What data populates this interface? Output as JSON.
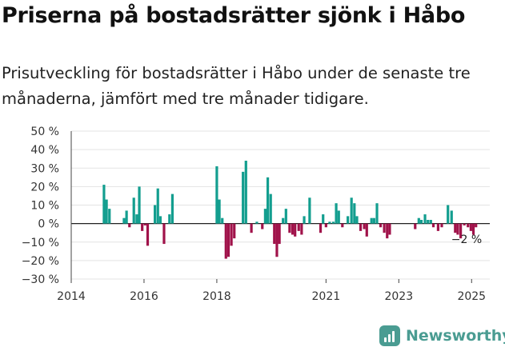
{
  "title": "Priserna på bostadsrätter sjönk i Håbo",
  "subtitle": "Prisutveckling för bostadsrätter i Håbo under de senaste tre månaderna, jämfört med tre månader tidigare.",
  "logo_text": "Newsworthy",
  "colors": {
    "positive": "#139e8f",
    "negative": "#a0124a",
    "logo": "#4a9c92"
  },
  "chart_data": {
    "type": "bar",
    "ylabel_unit": "%",
    "ylim": [
      -30,
      50
    ],
    "yticks": [
      "50 %",
      "40 %",
      "30 %",
      "20 %",
      "10 %",
      "0 %",
      "−10 %",
      "−20 %",
      "−30 %"
    ],
    "xticks": [
      "2014",
      "2016",
      "2018",
      "2021",
      "2023",
      "2025"
    ],
    "xlim": [
      2014,
      2025.5
    ],
    "grid": true,
    "annotation": "−2 %",
    "points": [
      [
        2014.9,
        21
      ],
      [
        2014.97,
        13
      ],
      [
        2015.05,
        8
      ],
      [
        2015.45,
        3
      ],
      [
        2015.52,
        7
      ],
      [
        2015.6,
        -2
      ],
      [
        2015.72,
        14
      ],
      [
        2015.8,
        5
      ],
      [
        2015.87,
        20
      ],
      [
        2015.95,
        -4
      ],
      [
        2016.03,
        -1
      ],
      [
        2016.1,
        -12
      ],
      [
        2016.3,
        10
      ],
      [
        2016.38,
        19
      ],
      [
        2016.45,
        4
      ],
      [
        2016.55,
        -11
      ],
      [
        2016.7,
        5
      ],
      [
        2016.78,
        16
      ],
      [
        2018.0,
        31
      ],
      [
        2018.07,
        13
      ],
      [
        2018.15,
        3
      ],
      [
        2018.25,
        -19
      ],
      [
        2018.32,
        -18
      ],
      [
        2018.4,
        -12
      ],
      [
        2018.48,
        -8
      ],
      [
        2018.72,
        28
      ],
      [
        2018.8,
        34
      ],
      [
        2018.95,
        -5
      ],
      [
        2019.1,
        1
      ],
      [
        2019.25,
        -3
      ],
      [
        2019.33,
        8
      ],
      [
        2019.4,
        25
      ],
      [
        2019.48,
        16
      ],
      [
        2019.58,
        -11
      ],
      [
        2019.65,
        -18
      ],
      [
        2019.72,
        -11
      ],
      [
        2019.82,
        3
      ],
      [
        2019.9,
        8
      ],
      [
        2020.0,
        -5
      ],
      [
        2020.08,
        -6
      ],
      [
        2020.15,
        -7
      ],
      [
        2020.25,
        -4
      ],
      [
        2020.33,
        -6
      ],
      [
        2020.4,
        4
      ],
      [
        2020.55,
        14
      ],
      [
        2020.85,
        -5
      ],
      [
        2020.92,
        5
      ],
      [
        2021.0,
        -2
      ],
      [
        2021.1,
        1
      ],
      [
        2021.2,
        1
      ],
      [
        2021.28,
        11
      ],
      [
        2021.35,
        7
      ],
      [
        2021.45,
        -2
      ],
      [
        2021.6,
        4
      ],
      [
        2021.7,
        14
      ],
      [
        2021.78,
        11
      ],
      [
        2021.85,
        4
      ],
      [
        2021.95,
        -4
      ],
      [
        2022.05,
        -3
      ],
      [
        2022.12,
        -7
      ],
      [
        2022.25,
        3
      ],
      [
        2022.32,
        3
      ],
      [
        2022.4,
        11
      ],
      [
        2022.5,
        -2
      ],
      [
        2022.6,
        -5
      ],
      [
        2022.68,
        -8
      ],
      [
        2022.75,
        -6
      ],
      [
        2023.45,
        -3
      ],
      [
        2023.55,
        3
      ],
      [
        2023.62,
        2
      ],
      [
        2023.72,
        5
      ],
      [
        2023.8,
        2
      ],
      [
        2023.88,
        2
      ],
      [
        2023.95,
        -2
      ],
      [
        2024.08,
        -4
      ],
      [
        2024.18,
        -2
      ],
      [
        2024.35,
        10
      ],
      [
        2024.45,
        7
      ],
      [
        2024.55,
        -5
      ],
      [
        2024.62,
        -6
      ],
      [
        2024.7,
        -8
      ],
      [
        2024.8,
        -1
      ],
      [
        2024.9,
        -2
      ],
      [
        2024.98,
        -4
      ],
      [
        2025.05,
        -6
      ],
      [
        2025.12,
        -2
      ]
    ]
  }
}
